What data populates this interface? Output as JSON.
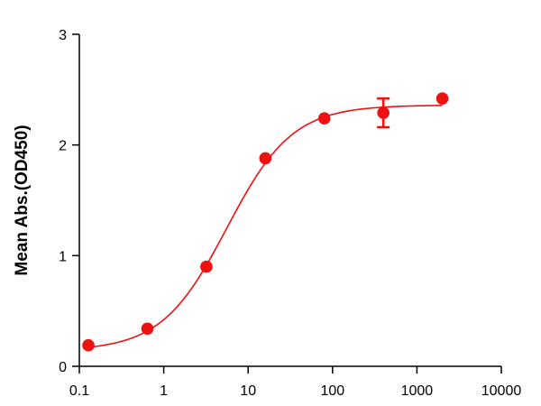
{
  "chart_data": {
    "type": "scatter",
    "xlabel": "",
    "ylabel": "Mean Abs.(OD450)",
    "xscale": "log",
    "xlim": [
      0.1,
      10000
    ],
    "ylim": [
      0,
      3
    ],
    "x_ticks": [
      "0.1",
      "1",
      "10",
      "100",
      "1000",
      "10000"
    ],
    "y_ticks": [
      "0",
      "1",
      "2",
      "3"
    ],
    "grid": false,
    "legend": "none",
    "series": [
      {
        "color": "#ee1111",
        "x": [
          0.128,
          0.64,
          3.2,
          16,
          80,
          400,
          2000
        ],
        "y": [
          0.19,
          0.34,
          0.9,
          1.88,
          2.24,
          2.29,
          2.42
        ],
        "y_error": [
          0,
          0,
          0,
          0,
          0,
          0.13,
          0
        ],
        "fit": {
          "model": "4PL",
          "bottom": 0.14,
          "top": 2.36,
          "ec50": 5.6,
          "hill": 1.12
        }
      }
    ]
  }
}
